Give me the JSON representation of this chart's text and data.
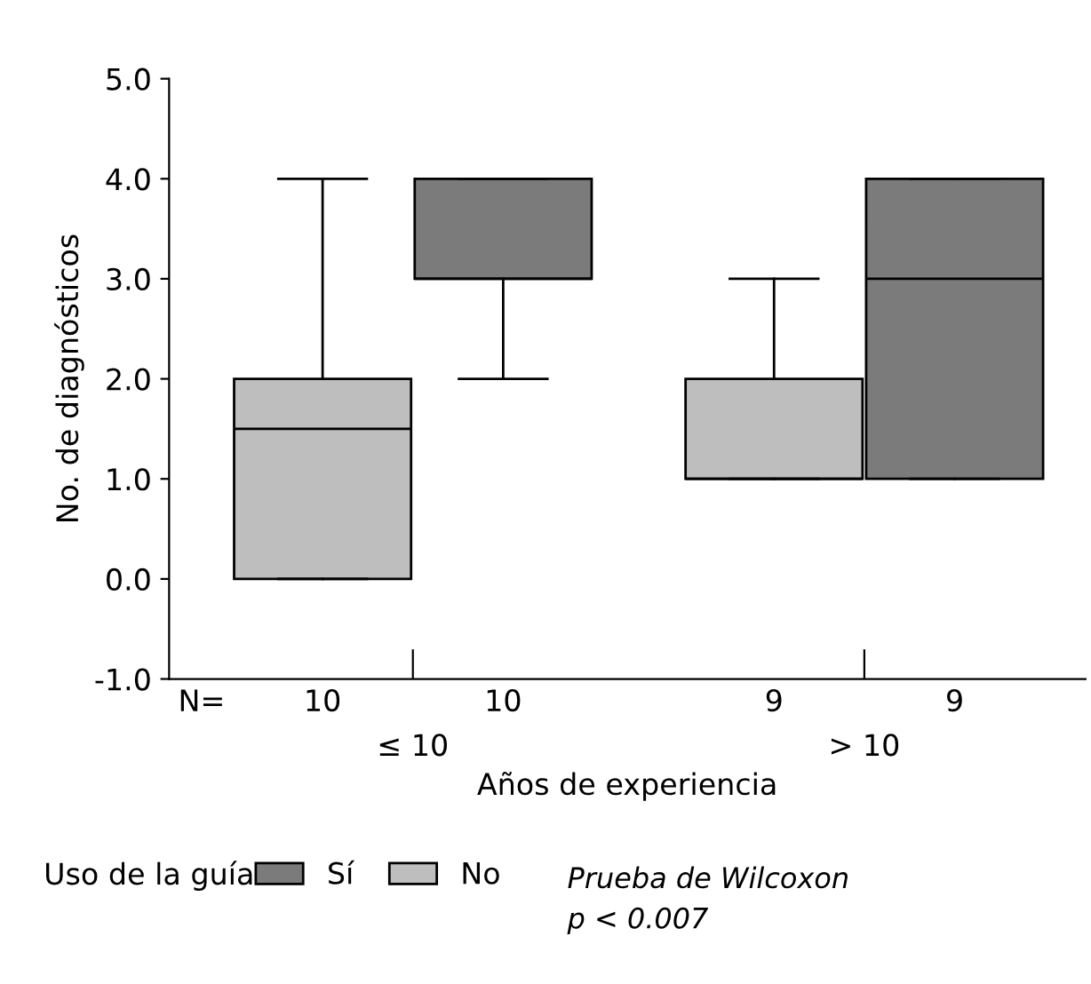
{
  "chart_data": {
    "type": "box",
    "ylabel": "No. de diagnósticos",
    "xlabel": "Años de experiencia",
    "legend_title": "Uso de la guía",
    "categories": [
      "≤ 10",
      "> 10"
    ],
    "ylim": [
      -1,
      5
    ],
    "yticks": [
      {
        "value": -1,
        "label": "-1.0"
      },
      {
        "value": 0,
        "label": "0.0"
      },
      {
        "value": 1,
        "label": "1.0"
      },
      {
        "value": 2,
        "label": "2.0"
      },
      {
        "value": 3,
        "label": "3.0"
      },
      {
        "value": 4,
        "label": "4.0"
      },
      {
        "value": 5,
        "label": "5.0"
      }
    ],
    "grid": false,
    "legend": "bottom",
    "series": [
      {
        "name": "No",
        "color": "#bebebe",
        "boxes": [
          {
            "low": 0,
            "q1": 0,
            "median": 1.5,
            "q3": 2,
            "high": 4
          },
          {
            "low": 1,
            "q1": 1,
            "median": 1,
            "q3": 2,
            "high": 3
          }
        ]
      },
      {
        "name": "Sí",
        "color": "#7b7b7b",
        "boxes": [
          {
            "low": 2,
            "q1": 3,
            "median": 3,
            "q3": 4,
            "high": 4
          },
          {
            "low": 1,
            "q1": 1,
            "median": 3,
            "q3": 4,
            "high": 4
          }
        ]
      }
    ],
    "annotations": [
      "N=",
      "10",
      "10",
      "9",
      "9",
      "Prueba de Wilcoxon\np < 0.007"
    ]
  }
}
